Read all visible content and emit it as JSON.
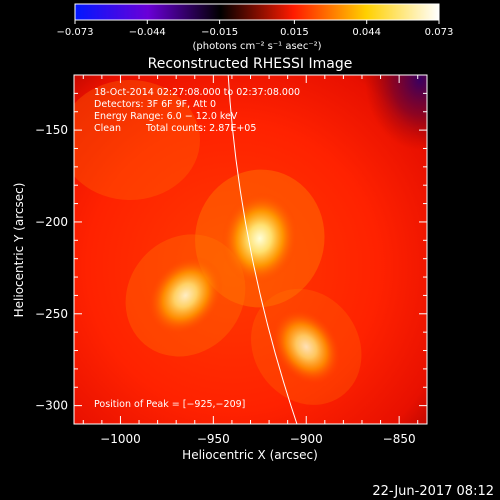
{
  "chart_data": {
    "type": "heatmap",
    "title": "Reconstructed RHESSI Image",
    "xlabel": "Heliocentric X (arcsec)",
    "ylabel": "Heliocentric Y (arcsec)",
    "xlim": [
      -1025,
      -835
    ],
    "ylim": [
      -310,
      -120
    ],
    "x_ticks": [
      -1000,
      -950,
      -900,
      -850
    ],
    "y_ticks": [
      -150,
      -200,
      -250,
      -300
    ],
    "x_tick_labels": [
      "−1000",
      "−950",
      "−900",
      "−850"
    ],
    "y_tick_labels": [
      "−150",
      "−200",
      "−250",
      "−300"
    ],
    "colorbar": {
      "min": -0.073,
      "max": 0.073,
      "tick_values": [
        -0.073,
        -0.044,
        -0.015,
        0.015,
        0.044,
        0.073
      ],
      "tick_labels": [
        "−0.073",
        "−0.044",
        "−0.015",
        "0.015",
        "0.044",
        "0.073"
      ],
      "units": "(photons cm⁻² s⁻¹ asec⁻²)",
      "colors": [
        "#0018ff",
        "#6a00d8",
        "#000000",
        "#ff1a00",
        "#ffd000",
        "#ffffff"
      ]
    },
    "annotations": {
      "time_range": "18-Oct-2014 02:27:08.000 to 02:37:08.000",
      "detectors": "Detectors: 3F 6F 9F, Att 0",
      "energy_range": "Energy Range: 6.0 − 12.0 keV",
      "clean_label": "Clean",
      "total_counts": "Total counts: 2.87E+05",
      "peak_position": "Position of Peak = [−925,−209]"
    },
    "sources": [
      {
        "x": -925,
        "y": -209,
        "intensity": 1.0
      },
      {
        "x": -965,
        "y": -240,
        "intensity": 0.75
      },
      {
        "x": -900,
        "y": -268,
        "intensity": 0.6
      }
    ],
    "limb_curve": [
      [
        -942,
        -120
      ],
      [
        -930,
        -215
      ],
      [
        -905,
        -310
      ]
    ],
    "plot_date": "22-Jun-2017 08:12"
  }
}
